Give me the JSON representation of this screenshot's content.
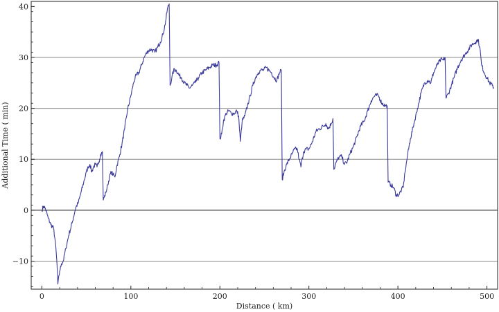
{
  "chart_data": {
    "type": "line",
    "title": "",
    "xlabel": "Distance ( km)",
    "ylabel": "Additional Time ( min)",
    "xlim": [
      -12,
      512
    ],
    "ylim": [
      -15.5,
      41
    ],
    "xticks": [
      0,
      100,
      200,
      300,
      400,
      500
    ],
    "yticks": [
      -10,
      0,
      10,
      20,
      30,
      40
    ],
    "xtick_labels": [
      "0",
      "100",
      "200",
      "300",
      "400",
      "500"
    ],
    "ytick_labels": [
      "−10",
      "0",
      "10",
      "20",
      "30",
      "40"
    ],
    "gridlines_y": [
      -10,
      0,
      10,
      20,
      30
    ],
    "grid": "horizontal",
    "series": [
      {
        "color": "#3a3a9a",
        "points": [
          [
            0,
            0
          ],
          [
            2,
            0.8
          ],
          [
            4,
            0.3
          ],
          [
            7,
            -1.5
          ],
          [
            10,
            -2.8
          ],
          [
            13,
            -3.5
          ],
          [
            15,
            -6
          ],
          [
            17,
            -10.5
          ],
          [
            18,
            -14.5
          ],
          [
            20,
            -12
          ],
          [
            22,
            -10.5
          ],
          [
            24,
            -10
          ],
          [
            27,
            -7.5
          ],
          [
            30,
            -5
          ],
          [
            34,
            -2.5
          ],
          [
            38,
            0.5
          ],
          [
            41,
            1.5
          ],
          [
            44,
            3.5
          ],
          [
            47,
            5.5
          ],
          [
            50,
            7.5
          ],
          [
            52,
            8.5
          ],
          [
            54,
            9
          ],
          [
            56,
            7.5
          ],
          [
            58,
            8.5
          ],
          [
            60,
            9
          ],
          [
            62,
            8.5
          ],
          [
            64,
            9.5
          ],
          [
            66,
            11
          ],
          [
            68,
            11.5
          ],
          [
            69,
            2
          ],
          [
            72,
            3.5
          ],
          [
            74,
            5
          ],
          [
            76,
            6.5
          ],
          [
            78,
            7.5
          ],
          [
            80,
            7
          ],
          [
            82,
            6.5
          ],
          [
            84,
            8.5
          ],
          [
            87,
            10.5
          ],
          [
            90,
            13
          ],
          [
            93,
            16
          ],
          [
            96,
            19.5
          ],
          [
            100,
            22.5
          ],
          [
            103,
            25
          ],
          [
            106,
            26.5
          ],
          [
            109,
            27
          ],
          [
            112,
            28.5
          ],
          [
            115,
            30
          ],
          [
            118,
            31
          ],
          [
            121,
            31.5
          ],
          [
            124,
            31.5
          ],
          [
            127,
            31
          ],
          [
            130,
            32
          ],
          [
            133,
            33
          ],
          [
            136,
            34.5
          ],
          [
            139,
            37
          ],
          [
            141,
            39.5
          ],
          [
            143,
            40.5
          ],
          [
            144,
            24.5
          ],
          [
            146,
            26
          ],
          [
            148,
            27.5
          ],
          [
            151,
            27.5
          ],
          [
            154,
            26.5
          ],
          [
            157,
            26
          ],
          [
            160,
            25
          ],
          [
            163,
            24.5
          ],
          [
            166,
            24
          ],
          [
            169,
            24.5
          ],
          [
            172,
            25
          ],
          [
            176,
            26
          ],
          [
            180,
            27
          ],
          [
            184,
            27.5
          ],
          [
            188,
            28
          ],
          [
            192,
            28.5
          ],
          [
            196,
            28.5
          ],
          [
            199,
            29
          ],
          [
            200,
            14
          ],
          [
            202,
            15
          ],
          [
            204,
            17.5
          ],
          [
            207,
            19
          ],
          [
            210,
            19.5
          ],
          [
            213,
            19
          ],
          [
            216,
            19
          ],
          [
            219,
            19.5
          ],
          [
            221,
            18.5
          ],
          [
            223,
            13.5
          ],
          [
            225,
            17.5
          ],
          [
            228,
            18.5
          ],
          [
            231,
            20.5
          ],
          [
            234,
            22.5
          ],
          [
            237,
            24.5
          ],
          [
            240,
            26
          ],
          [
            243,
            27
          ],
          [
            246,
            27.5
          ],
          [
            249,
            27.5
          ],
          [
            252,
            28
          ],
          [
            255,
            27.5
          ],
          [
            258,
            27
          ],
          [
            261,
            26
          ],
          [
            264,
            25.5
          ],
          [
            267,
            27
          ],
          [
            269,
            27.5
          ],
          [
            270,
            6
          ],
          [
            272,
            7.5
          ],
          [
            275,
            9
          ],
          [
            278,
            10
          ],
          [
            281,
            11
          ],
          [
            284,
            12
          ],
          [
            287,
            12
          ],
          [
            289,
            10
          ],
          [
            291,
            8.5
          ],
          [
            294,
            11.5
          ],
          [
            297,
            12
          ],
          [
            300,
            12
          ],
          [
            304,
            13.5
          ],
          [
            308,
            15.5
          ],
          [
            312,
            16
          ],
          [
            316,
            16.5
          ],
          [
            319,
            17
          ],
          [
            322,
            16
          ],
          [
            325,
            17
          ],
          [
            327,
            18
          ],
          [
            328,
            8
          ],
          [
            331,
            9.5
          ],
          [
            334,
            10.5
          ],
          [
            337,
            10.5
          ],
          [
            340,
            9
          ],
          [
            343,
            9.5
          ],
          [
            346,
            11
          ],
          [
            350,
            12.5
          ],
          [
            354,
            14.5
          ],
          [
            358,
            16.5
          ],
          [
            362,
            17.5
          ],
          [
            366,
            19.5
          ],
          [
            370,
            21.5
          ],
          [
            374,
            22.5
          ],
          [
            378,
            22.5
          ],
          [
            382,
            21
          ],
          [
            386,
            20.5
          ],
          [
            388,
            20.5
          ],
          [
            389,
            5.5
          ],
          [
            392,
            5
          ],
          [
            395,
            4.5
          ],
          [
            398,
            3
          ],
          [
            401,
            3
          ],
          [
            404,
            4
          ],
          [
            406,
            4.5
          ],
          [
            408,
            7.5
          ],
          [
            411,
            11
          ],
          [
            414,
            14
          ],
          [
            418,
            17
          ],
          [
            422,
            20
          ],
          [
            426,
            23
          ],
          [
            430,
            25
          ],
          [
            434,
            25.5
          ],
          [
            437,
            25
          ],
          [
            440,
            27
          ],
          [
            444,
            28.5
          ],
          [
            448,
            29.5
          ],
          [
            451,
            29.5
          ],
          [
            453,
            30
          ],
          [
            454,
            22
          ],
          [
            457,
            23
          ],
          [
            460,
            24.5
          ],
          [
            463,
            26
          ],
          [
            467,
            28
          ],
          [
            471,
            29.5
          ],
          [
            475,
            30.5
          ],
          [
            479,
            31.5
          ],
          [
            483,
            32.5
          ],
          [
            487,
            33
          ],
          [
            490,
            33.5
          ],
          [
            492,
            32
          ],
          [
            494,
            28.5
          ],
          [
            497,
            27
          ],
          [
            500,
            26
          ],
          [
            503,
            25
          ],
          [
            506,
            24.5
          ],
          [
            508,
            24
          ]
        ]
      }
    ]
  }
}
